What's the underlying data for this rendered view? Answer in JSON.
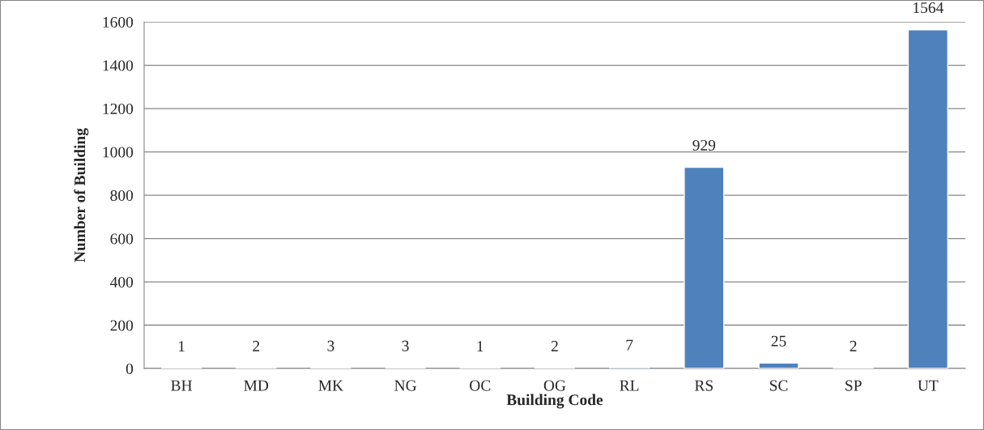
{
  "chart_data": {
    "type": "bar",
    "xlabel": "Building Code",
    "ylabel": "Number of Building",
    "categories": [
      "BH",
      "MD",
      "MK",
      "NG",
      "OC",
      "OG",
      "RL",
      "RS",
      "SC",
      "SP",
      "UT"
    ],
    "values": [
      1,
      2,
      3,
      3,
      1,
      2,
      7,
      929,
      25,
      2,
      1564
    ],
    "color": "#4f81bd",
    "ylim": [
      0,
      1600
    ],
    "yticks": [
      0,
      200,
      400,
      600,
      800,
      1000,
      1200,
      1400,
      1600
    ],
    "grid": "y",
    "data_labels": true,
    "legend": false
  }
}
